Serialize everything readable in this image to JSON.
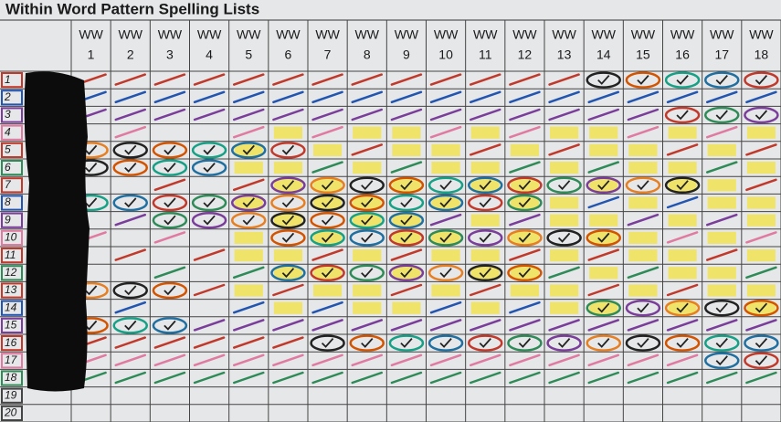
{
  "title": "Within Word Pattern Spelling Lists",
  "columns": [
    {
      "label": "WW",
      "number": 1
    },
    {
      "label": "WW",
      "number": 2
    },
    {
      "label": "WW",
      "number": 3
    },
    {
      "label": "WW",
      "number": 4
    },
    {
      "label": "WW",
      "number": 5
    },
    {
      "label": "WW",
      "number": 6
    },
    {
      "label": "WW",
      "number": 7
    },
    {
      "label": "WW",
      "number": 8
    },
    {
      "label": "WW",
      "number": 9
    },
    {
      "label": "WW",
      "number": 10
    },
    {
      "label": "WW",
      "number": 11
    },
    {
      "label": "WW",
      "number": 12
    },
    {
      "label": "WW",
      "number": 13
    },
    {
      "label": "WW",
      "number": 14
    },
    {
      "label": "WW",
      "number": 15
    },
    {
      "label": "WW",
      "number": 16
    },
    {
      "label": "WW",
      "number": 17
    },
    {
      "label": "WW",
      "number": 18
    }
  ],
  "rows": [
    1,
    2,
    3,
    4,
    5,
    6,
    7,
    8,
    9,
    10,
    11,
    12,
    13,
    14,
    15,
    16,
    17,
    18,
    19,
    20
  ]
}
